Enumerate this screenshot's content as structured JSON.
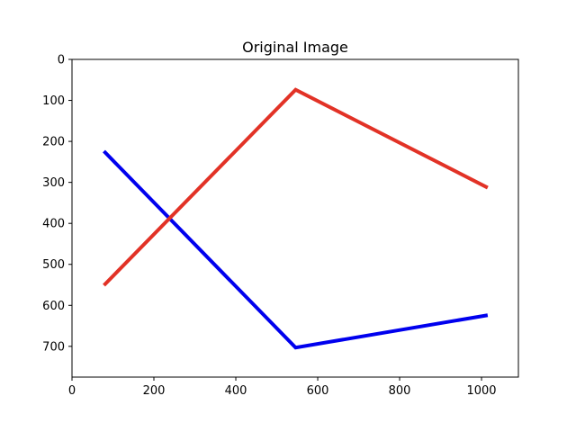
{
  "chart_data": {
    "type": "line",
    "title": "Original Image",
    "xlabel": "",
    "ylabel": "",
    "xlim": [
      0,
      1090
    ],
    "ylim": [
      775,
      0
    ],
    "y_inverted": true,
    "xticks": [
      0,
      200,
      400,
      600,
      800,
      1000
    ],
    "yticks": [
      0,
      100,
      200,
      300,
      400,
      500,
      600,
      700
    ],
    "grid": false,
    "series": [
      {
        "color": "#0000ee",
        "x": [
          78,
          546,
          1015
        ],
        "y": [
          224,
          703,
          624
        ]
      },
      {
        "color": "#e23226",
        "x": [
          78,
          546,
          1015
        ],
        "y": [
          551,
          74,
          313
        ]
      }
    ]
  }
}
